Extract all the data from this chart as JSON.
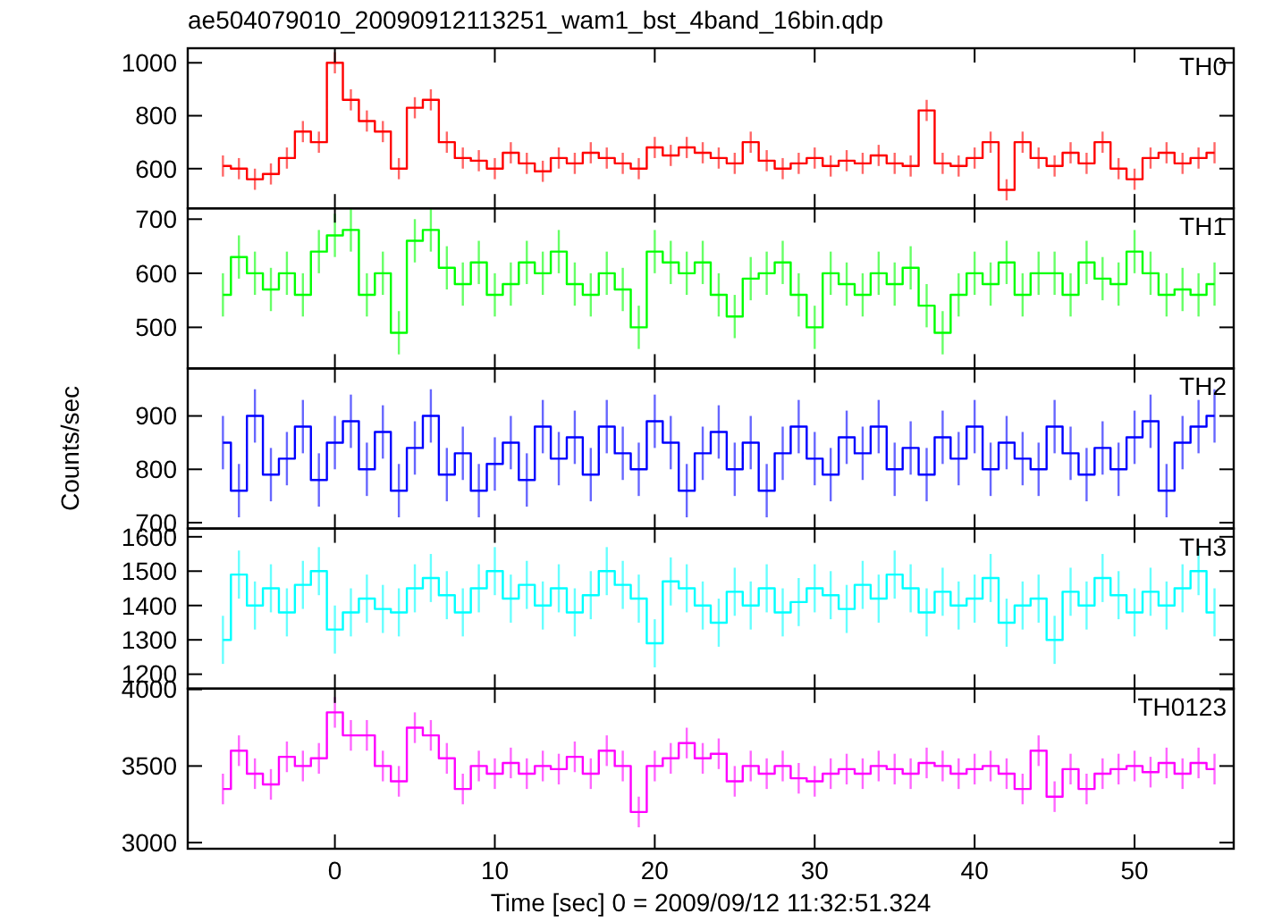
{
  "chart_data": [
    {
      "type": "step",
      "title": "ae504079010_20090912113251_wam1_bst_4band_16bin.qdp",
      "tick_labels": "y",
      "xlim": [
        -9.2,
        56.2
      ],
      "xticks": [
        0,
        10,
        20,
        30,
        40,
        50
      ],
      "ylim": [
        450,
        1055
      ],
      "yticks": [
        600,
        800,
        1000
      ],
      "x": [
        -7,
        -6,
        -5,
        -4,
        -3,
        -2,
        -1,
        0,
        1,
        2,
        3,
        4,
        5,
        6,
        7,
        8,
        9,
        10,
        11,
        12,
        13,
        14,
        15,
        16,
        17,
        18,
        19,
        20,
        21,
        22,
        23,
        24,
        25,
        26,
        27,
        28,
        29,
        30,
        31,
        32,
        33,
        34,
        35,
        36,
        37,
        38,
        39,
        40,
        41,
        42,
        43,
        44,
        45,
        46,
        47,
        48,
        49,
        50,
        51,
        52,
        53,
        54,
        55
      ],
      "series": [
        {
          "name": "TH0",
          "color": "#ff0000",
          "values": [
            610,
            600,
            560,
            580,
            640,
            740,
            700,
            1000,
            860,
            780,
            740,
            600,
            830,
            860,
            700,
            640,
            630,
            600,
            660,
            620,
            590,
            640,
            620,
            660,
            640,
            620,
            600,
            680,
            650,
            680,
            660,
            640,
            620,
            700,
            630,
            600,
            620,
            640,
            610,
            630,
            620,
            650,
            620,
            610,
            820,
            620,
            610,
            640,
            700,
            520,
            700,
            640,
            610,
            660,
            620,
            700,
            600,
            560,
            640,
            660,
            620,
            640,
            660
          ],
          "errors": [
            40,
            40,
            40,
            40,
            40,
            40,
            40,
            40,
            40,
            40,
            40,
            40,
            40,
            40,
            40,
            40,
            40,
            40,
            40,
            40,
            40,
            40,
            40,
            40,
            40,
            40,
            40,
            40,
            40,
            40,
            40,
            40,
            40,
            40,
            40,
            40,
            40,
            40,
            40,
            40,
            40,
            40,
            40,
            40,
            40,
            40,
            40,
            40,
            40,
            40,
            40,
            40,
            40,
            40,
            40,
            40,
            40,
            40,
            40,
            40,
            40,
            40,
            40
          ]
        }
      ]
    },
    {
      "type": "step",
      "tick_labels": "y",
      "xlim": [
        -9.2,
        56.2
      ],
      "xticks": [
        0,
        10,
        20,
        30,
        40,
        50
      ],
      "ylim": [
        424,
        720
      ],
      "yticks": [
        500,
        600,
        700
      ],
      "x": [
        -7,
        -6,
        -5,
        -4,
        -3,
        -2,
        -1,
        0,
        1,
        2,
        3,
        4,
        5,
        6,
        7,
        8,
        9,
        10,
        11,
        12,
        13,
        14,
        15,
        16,
        17,
        18,
        19,
        20,
        21,
        22,
        23,
        24,
        25,
        26,
        27,
        28,
        29,
        30,
        31,
        32,
        33,
        34,
        35,
        36,
        37,
        38,
        39,
        40,
        41,
        42,
        43,
        44,
        45,
        46,
        47,
        48,
        49,
        50,
        51,
        52,
        53,
        54,
        55
      ],
      "series": [
        {
          "name": "TH1",
          "color": "#00ff00",
          "values": [
            560,
            630,
            600,
            570,
            600,
            560,
            640,
            670,
            680,
            560,
            600,
            490,
            660,
            680,
            610,
            580,
            620,
            560,
            580,
            620,
            600,
            640,
            580,
            560,
            600,
            570,
            500,
            640,
            620,
            600,
            620,
            560,
            520,
            590,
            600,
            620,
            560,
            500,
            600,
            580,
            560,
            600,
            580,
            610,
            540,
            490,
            560,
            600,
            580,
            620,
            560,
            600,
            600,
            560,
            620,
            590,
            580,
            640,
            600,
            560,
            570,
            560,
            580
          ],
          "errors": [
            40,
            40,
            40,
            40,
            40,
            40,
            40,
            40,
            40,
            40,
            40,
            40,
            40,
            40,
            40,
            40,
            40,
            40,
            40,
            40,
            40,
            40,
            40,
            40,
            40,
            40,
            40,
            40,
            40,
            40,
            40,
            40,
            40,
            40,
            40,
            40,
            40,
            40,
            40,
            40,
            40,
            40,
            40,
            40,
            40,
            40,
            40,
            40,
            40,
            40,
            40,
            40,
            40,
            40,
            40,
            40,
            40,
            40,
            40,
            40,
            40,
            40,
            40
          ]
        }
      ]
    },
    {
      "type": "step",
      "tick_labels": "y",
      "ylabel": "Counts/sec",
      "xlim": [
        -9.2,
        56.2
      ],
      "xticks": [
        0,
        10,
        20,
        30,
        40,
        50
      ],
      "ylim": [
        689,
        989
      ],
      "yticks": [
        700,
        800,
        900
      ],
      "x": [
        -7,
        -6,
        -5,
        -4,
        -3,
        -2,
        -1,
        0,
        1,
        2,
        3,
        4,
        5,
        6,
        7,
        8,
        9,
        10,
        11,
        12,
        13,
        14,
        15,
        16,
        17,
        18,
        19,
        20,
        21,
        22,
        23,
        24,
        25,
        26,
        27,
        28,
        29,
        30,
        31,
        32,
        33,
        34,
        35,
        36,
        37,
        38,
        39,
        40,
        41,
        42,
        43,
        44,
        45,
        46,
        47,
        48,
        49,
        50,
        51,
        52,
        53,
        54,
        55
      ],
      "series": [
        {
          "name": "TH2",
          "color": "#0000ff",
          "values": [
            850,
            760,
            900,
            790,
            820,
            880,
            780,
            850,
            890,
            800,
            870,
            760,
            840,
            900,
            790,
            830,
            760,
            810,
            850,
            780,
            880,
            820,
            860,
            790,
            880,
            830,
            800,
            890,
            850,
            760,
            830,
            870,
            800,
            850,
            760,
            830,
            880,
            820,
            790,
            860,
            830,
            880,
            800,
            840,
            790,
            860,
            820,
            880,
            800,
            850,
            820,
            800,
            880,
            830,
            790,
            840,
            800,
            860,
            890,
            760,
            850,
            880,
            900
          ],
          "errors": [
            50,
            50,
            50,
            50,
            50,
            50,
            50,
            50,
            50,
            50,
            50,
            50,
            50,
            50,
            50,
            50,
            50,
            50,
            50,
            50,
            50,
            50,
            50,
            50,
            50,
            50,
            50,
            50,
            50,
            50,
            50,
            50,
            50,
            50,
            50,
            50,
            50,
            50,
            50,
            50,
            50,
            50,
            50,
            50,
            50,
            50,
            50,
            50,
            50,
            50,
            50,
            50,
            50,
            50,
            50,
            50,
            50,
            50,
            50,
            50,
            50,
            50,
            50
          ]
        }
      ]
    },
    {
      "type": "step",
      "tick_labels": "y",
      "xlim": [
        -9.2,
        56.2
      ],
      "xticks": [
        0,
        10,
        20,
        30,
        40,
        50
      ],
      "ylim": [
        1158,
        1624
      ],
      "yticks": [
        1200,
        1300,
        1400,
        1500,
        1600
      ],
      "x": [
        -7,
        -6,
        -5,
        -4,
        -3,
        -2,
        -1,
        0,
        1,
        2,
        3,
        4,
        5,
        6,
        7,
        8,
        9,
        10,
        11,
        12,
        13,
        14,
        15,
        16,
        17,
        18,
        19,
        20,
        21,
        22,
        23,
        24,
        25,
        26,
        27,
        28,
        29,
        30,
        31,
        32,
        33,
        34,
        35,
        36,
        37,
        38,
        39,
        40,
        41,
        42,
        43,
        44,
        45,
        46,
        47,
        48,
        49,
        50,
        51,
        52,
        53,
        54,
        55
      ],
      "series": [
        {
          "name": "TH3",
          "color": "#00ffff",
          "values": [
            1300,
            1490,
            1400,
            1450,
            1380,
            1460,
            1500,
            1330,
            1380,
            1420,
            1390,
            1380,
            1450,
            1480,
            1430,
            1380,
            1450,
            1500,
            1420,
            1460,
            1400,
            1450,
            1380,
            1430,
            1500,
            1460,
            1420,
            1290,
            1470,
            1450,
            1400,
            1350,
            1440,
            1400,
            1450,
            1380,
            1410,
            1450,
            1430,
            1390,
            1460,
            1420,
            1490,
            1450,
            1380,
            1440,
            1400,
            1420,
            1480,
            1350,
            1400,
            1420,
            1300,
            1440,
            1400,
            1480,
            1430,
            1380,
            1440,
            1400,
            1450,
            1500,
            1380
          ],
          "errors": [
            70,
            70,
            70,
            70,
            70,
            70,
            70,
            70,
            70,
            70,
            70,
            70,
            70,
            70,
            70,
            70,
            70,
            70,
            70,
            70,
            70,
            70,
            70,
            70,
            70,
            70,
            70,
            70,
            70,
            70,
            70,
            70,
            70,
            70,
            70,
            70,
            70,
            70,
            70,
            70,
            70,
            70,
            70,
            70,
            70,
            70,
            70,
            70,
            70,
            70,
            70,
            70,
            70,
            70,
            70,
            70,
            70,
            70,
            70,
            70,
            70,
            70,
            70
          ]
        }
      ]
    },
    {
      "type": "step",
      "xlabel": "Time [sec] 0 = 2009/09/12 11:32:51.324",
      "xlim": [
        -9.2,
        56.2
      ],
      "xticks": [
        0,
        10,
        20,
        30,
        40,
        50
      ],
      "ylim": [
        2960,
        4005
      ],
      "yticks": [
        3000,
        3500,
        4000
      ],
      "x": [
        -7,
        -6,
        -5,
        -4,
        -3,
        -2,
        -1,
        0,
        1,
        2,
        3,
        4,
        5,
        6,
        7,
        8,
        9,
        10,
        11,
        12,
        13,
        14,
        15,
        16,
        17,
        18,
        19,
        20,
        21,
        22,
        23,
        24,
        25,
        26,
        27,
        28,
        29,
        30,
        31,
        32,
        33,
        34,
        35,
        36,
        37,
        38,
        39,
        40,
        41,
        42,
        43,
        44,
        45,
        46,
        47,
        48,
        49,
        50,
        51,
        52,
        53,
        54,
        55
      ],
      "series": [
        {
          "name": "TH0123",
          "color": "#ff00ff",
          "values": [
            3350,
            3600,
            3450,
            3380,
            3560,
            3500,
            3550,
            3850,
            3700,
            3700,
            3500,
            3400,
            3750,
            3700,
            3550,
            3350,
            3500,
            3450,
            3520,
            3450,
            3500,
            3480,
            3560,
            3450,
            3600,
            3500,
            3200,
            3500,
            3550,
            3650,
            3550,
            3580,
            3400,
            3500,
            3450,
            3500,
            3420,
            3400,
            3450,
            3480,
            3450,
            3500,
            3480,
            3450,
            3520,
            3500,
            3450,
            3480,
            3500,
            3450,
            3350,
            3600,
            3300,
            3480,
            3350,
            3450,
            3480,
            3500,
            3460,
            3520,
            3450,
            3520,
            3480
          ],
          "errors": [
            100,
            100,
            100,
            100,
            100,
            100,
            100,
            100,
            100,
            100,
            100,
            100,
            100,
            100,
            100,
            100,
            100,
            100,
            100,
            100,
            100,
            100,
            100,
            100,
            100,
            100,
            100,
            100,
            100,
            100,
            100,
            100,
            100,
            100,
            100,
            100,
            100,
            100,
            100,
            100,
            100,
            100,
            100,
            100,
            100,
            100,
            100,
            100,
            100,
            100,
            100,
            100,
            100,
            100,
            100,
            100,
            100,
            100,
            100,
            100,
            100,
            100,
            100
          ]
        }
      ]
    }
  ]
}
